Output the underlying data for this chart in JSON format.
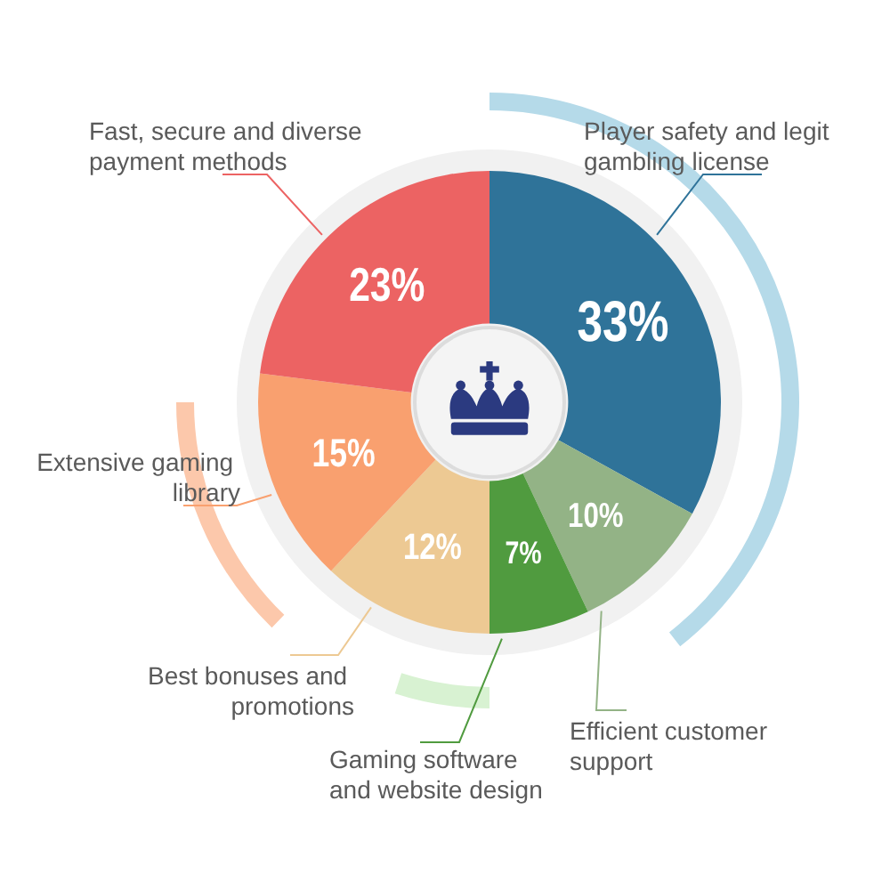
{
  "chart_data": {
    "type": "donut",
    "categories": [
      "Player safety and legit gambling license",
      "Efficient customer support",
      "Gaming software and website design",
      "Best bonuses and promotions",
      "Extensive gaming library",
      "Fast, secure and diverse payment methods"
    ],
    "values": [
      33,
      10,
      7,
      12,
      15,
      23
    ],
    "colors": [
      "#2f7399",
      "#93b386",
      "#509b3f",
      "#edc993",
      "#f9a06f",
      "#ec6363"
    ],
    "value_labels": [
      "33%",
      "10%",
      "7%",
      "12%",
      "15%",
      "23%"
    ]
  }
}
